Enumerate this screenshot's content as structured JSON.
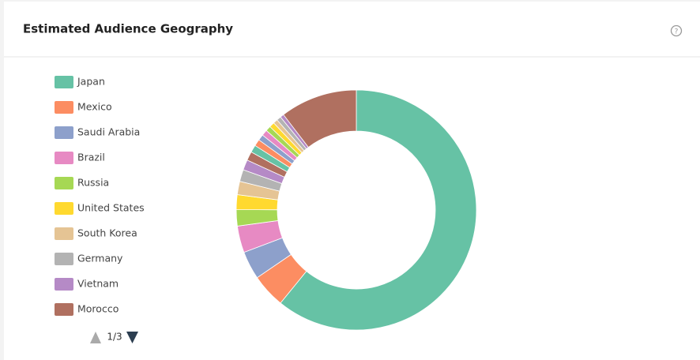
{
  "chart_data": {
    "type": "pie",
    "title": "Estimated Audience Geography",
    "categories": [
      "Japan",
      "Mexico",
      "Saudi Arabia",
      "Brazil",
      "Russia",
      "United States",
      "South Korea",
      "Germany",
      "Vietnam",
      "Morocco",
      null,
      null,
      null,
      null,
      null,
      null,
      null,
      null,
      null,
      null
    ],
    "values": [
      61,
      4.6,
      3.8,
      3.6,
      2.2,
      2.0,
      1.8,
      1.6,
      1.4,
      1.2,
      1.0,
      0.9,
      0.8,
      0.8,
      0.7,
      0.7,
      0.6,
      0.6,
      0.5,
      10.4
    ],
    "colors": [
      "#66c2a5",
      "#fc8d62",
      "#8da0cb",
      "#e78ac3",
      "#a6d854",
      "#ffd92f",
      "#e5c494",
      "#b3b3b3",
      "#b58ac6",
      "#b07060",
      "#66c2a5",
      "#fc8d62",
      "#8da0cb",
      "#e78ac3",
      "#a6d854",
      "#ffd92f",
      "#e5c494",
      "#b3b3b3",
      "#b58ac6",
      "#b07060"
    ],
    "legend_page": "1/3"
  }
}
